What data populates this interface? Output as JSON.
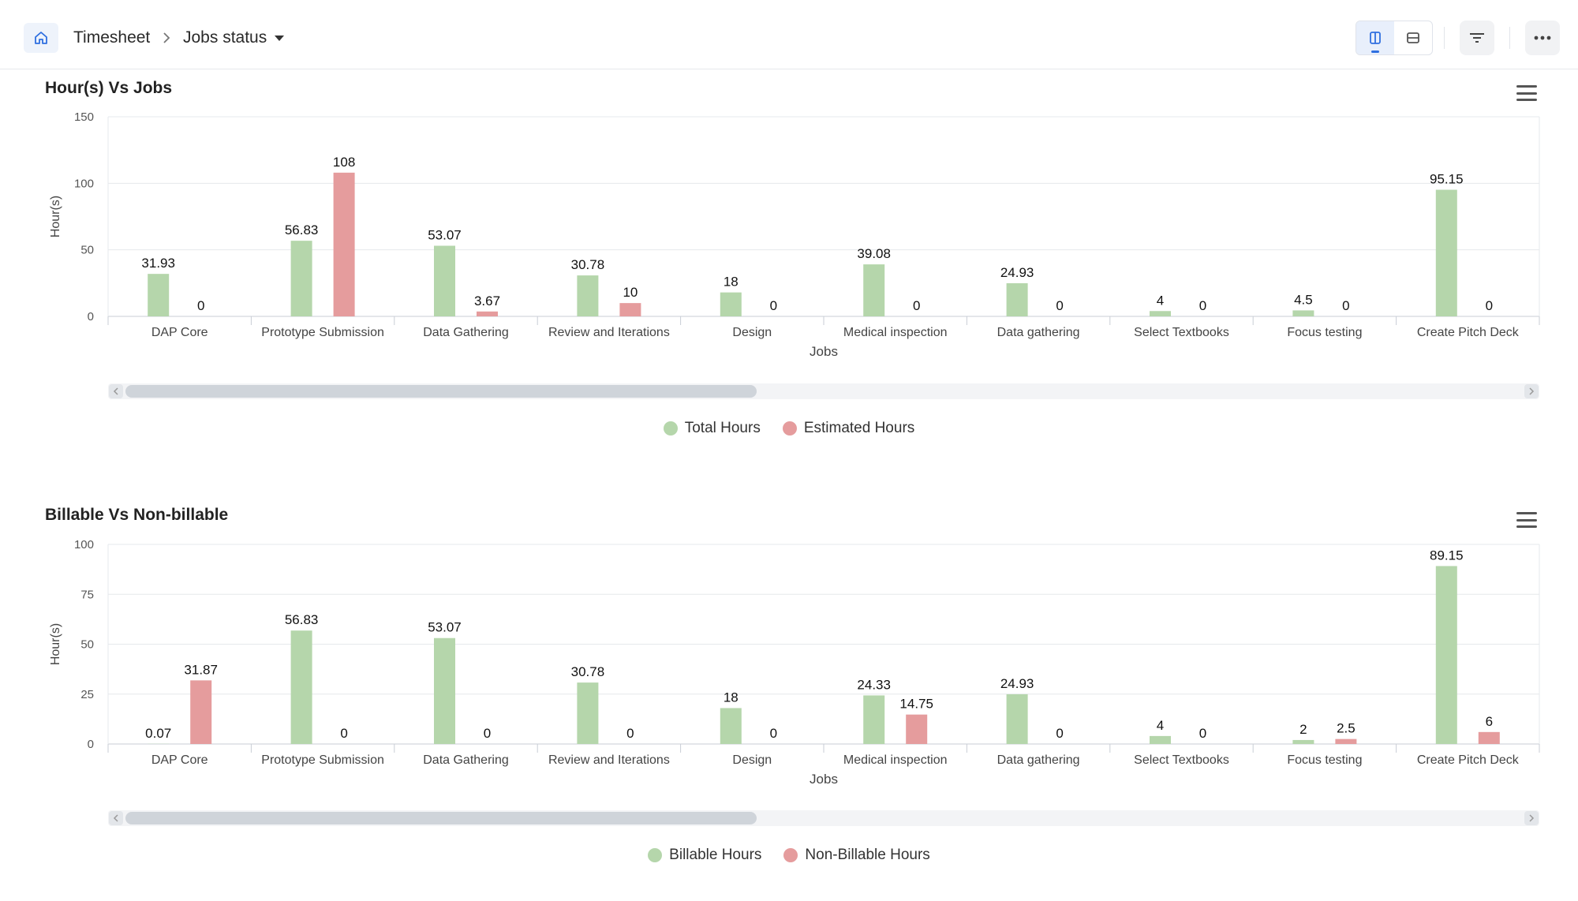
{
  "breadcrumb": {
    "items": [
      "Timesheet",
      "Jobs status"
    ]
  },
  "colors": {
    "green": "#b5d6ab",
    "red": "#e59c9d",
    "accent": "#2f6fe0"
  },
  "charts": [
    {
      "title": "Hour(s) Vs Jobs",
      "chart_data": {
        "type": "bar",
        "title": "Hour(s) Vs Jobs",
        "xlabel": "Jobs",
        "ylabel": "Hour(s)",
        "ylim": [
          0,
          150
        ],
        "yticks": [
          0,
          50,
          100,
          150
        ],
        "grid": true,
        "legend": "bottom-center",
        "categories": [
          "DAP Core",
          "Prototype Submission",
          "Data Gathering",
          "Review and Iterations",
          "Design",
          "Medical inspection",
          "Data gathering",
          "Select Textbooks",
          "Focus testing",
          "Create Pitch Deck"
        ],
        "series": [
          {
            "name": "Total Hours",
            "color": "#b5d6ab",
            "values": [
              31.93,
              56.83,
              53.07,
              30.78,
              18,
              39.08,
              24.93,
              4,
              4.5,
              95.15
            ]
          },
          {
            "name": "Estimated Hours",
            "color": "#e59c9d",
            "values": [
              0,
              108,
              3.67,
              10,
              0,
              0,
              0,
              0,
              0,
              0
            ]
          }
        ]
      }
    },
    {
      "title": "Billable Vs Non-billable",
      "chart_data": {
        "type": "bar",
        "title": "Billable Vs Non-billable",
        "xlabel": "Jobs",
        "ylabel": "Hour(s)",
        "ylim": [
          0,
          100
        ],
        "yticks": [
          0,
          25,
          50,
          75,
          100
        ],
        "grid": true,
        "legend": "bottom-center",
        "categories": [
          "DAP Core",
          "Prototype Submission",
          "Data Gathering",
          "Review and Iterations",
          "Design",
          "Medical inspection",
          "Data gathering",
          "Select Textbooks",
          "Focus testing",
          "Create Pitch Deck"
        ],
        "series": [
          {
            "name": "Billable Hours",
            "color": "#b5d6ab",
            "values": [
              0.07,
              56.83,
              53.07,
              30.78,
              18,
              24.33,
              24.93,
              4,
              2,
              89.15
            ]
          },
          {
            "name": "Non-Billable Hours",
            "color": "#e59c9d",
            "values": [
              31.87,
              0,
              0,
              0,
              0,
              14.75,
              0,
              0,
              2.5,
              6
            ]
          }
        ]
      }
    }
  ]
}
